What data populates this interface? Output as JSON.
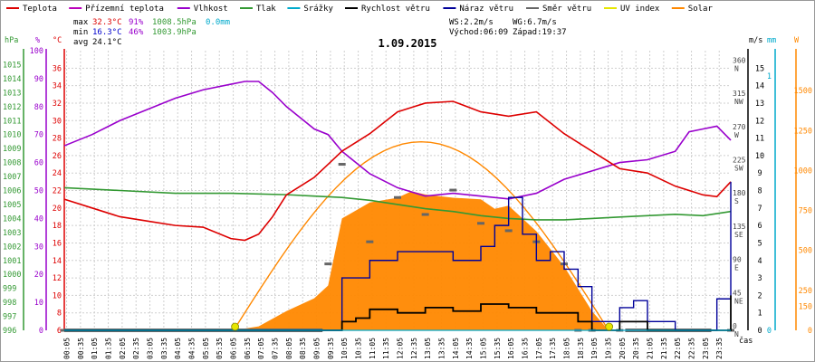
{
  "legend": [
    {
      "label": "Teplota",
      "color": "#dd0000"
    },
    {
      "label": "Přízemní teplota",
      "color": "#bb00bb"
    },
    {
      "label": "Vlhkost",
      "color": "#9900cc"
    },
    {
      "label": "Tlak",
      "color": "#339933"
    },
    {
      "label": "Srážky",
      "color": "#00aacc"
    },
    {
      "label": "Rychlost větru",
      "color": "#000000"
    },
    {
      "label": "Náraz větru",
      "color": "#000099"
    },
    {
      "label": "Směr větru",
      "color": "#666666"
    },
    {
      "label": "UV index",
      "color": "#e6e600"
    },
    {
      "label": "Solar",
      "color": "#ff8800"
    }
  ],
  "stats": {
    "max_label": "max",
    "max_temp": "32.3°C",
    "max_hum": "91%",
    "max_press": "1008.5hPa",
    "max_rain": "0.0mm",
    "min_label": "min",
    "min_temp": "16.3°C",
    "min_hum": "46%",
    "min_press": "1003.9hPa",
    "avg_label": "avg",
    "avg_temp": "24.1°C",
    "ws": "WS:2.2m/s",
    "wg": "WG:6.7m/s",
    "sunrise": "Východ:06:09",
    "sunset": "Západ:19:37"
  },
  "date": "1.09.2015",
  "units": {
    "hpa": "hPa",
    "pct": "%",
    "degc": "°C",
    "ms": "m/s",
    "mm": "mm",
    "w": "W",
    "cas": "čas"
  },
  "colors": {
    "temp": "#dd0000",
    "hum": "#9900cc",
    "press": "#339933",
    "rain": "#00aacc",
    "wind": "#000000",
    "gust": "#000099",
    "dir": "#666666",
    "uv": "#e6e600",
    "solar": "#ff8800"
  },
  "chart_data": {
    "type": "line",
    "title": "1.09.2015",
    "x_unit": "hours",
    "x_tick_labels": [
      "00:05",
      "00:35",
      "01:05",
      "01:35",
      "02:05",
      "02:35",
      "03:05",
      "03:35",
      "04:05",
      "04:35",
      "05:05",
      "05:35",
      "06:05",
      "06:35",
      "07:05",
      "07:35",
      "08:05",
      "08:35",
      "09:05",
      "09:35",
      "10:05",
      "10:35",
      "11:05",
      "11:35",
      "12:05",
      "12:35",
      "13:05",
      "13:35",
      "14:05",
      "14:35",
      "15:05",
      "15:35",
      "16:05",
      "16:35",
      "17:05",
      "17:35",
      "18:05",
      "18:35",
      "19:05",
      "19:35",
      "20:05",
      "20:35",
      "21:05",
      "21:35",
      "22:05",
      "22:35",
      "23:05",
      "23:35"
    ],
    "axes": {
      "pressure_hpa": {
        "range": [
          996,
          1016
        ],
        "ticks": [
          996,
          997,
          998,
          999,
          1000,
          1001,
          1002,
          1003,
          1004,
          1005,
          1006,
          1007,
          1008,
          1009,
          1010,
          1011,
          1012,
          1013,
          1014,
          1015
        ]
      },
      "humidity_pct": {
        "range": [
          0,
          100
        ],
        "ticks": [
          0,
          10,
          20,
          30,
          40,
          50,
          60,
          70,
          80,
          90,
          100
        ]
      },
      "temperature_c": {
        "range": [
          6,
          38
        ],
        "ticks": [
          6,
          8,
          10,
          12,
          14,
          16,
          18,
          20,
          22,
          24,
          26,
          28,
          30,
          32,
          34,
          36
        ]
      },
      "wind_ms": {
        "range": [
          0,
          16
        ],
        "ticks": [
          0,
          1,
          2,
          3,
          4,
          5,
          6,
          7,
          8,
          9,
          10,
          11,
          12,
          13,
          14,
          15
        ]
      },
      "rain_mm": {
        "range": [
          0,
          1.1
        ],
        "ticks": [
          0,
          1
        ]
      },
      "solar_w": {
        "range": [
          0,
          1750
        ],
        "ticks": [
          0,
          150,
          250,
          500,
          750,
          1000,
          1250,
          1500
        ]
      },
      "direction_deg": {
        "ticks": [
          0,
          45,
          90,
          135,
          180,
          225,
          270,
          315,
          360
        ],
        "labels": [
          "N",
          "NE",
          "E",
          "SE",
          "S",
          "SW",
          "W",
          "NW",
          "N"
        ]
      }
    },
    "series": [
      {
        "name": "Teplota",
        "unit": "°C",
        "x": [
          0,
          1,
          2,
          3,
          4,
          5,
          6,
          6.5,
          7,
          7.5,
          8,
          8.5,
          9,
          9.5,
          10,
          11,
          12,
          12.5,
          13,
          14,
          15,
          16,
          17,
          18,
          19,
          20,
          21,
          22,
          23,
          23.5,
          24
        ],
        "values": [
          21,
          20,
          19,
          18.5,
          18,
          17.8,
          16.5,
          16.3,
          17,
          19,
          21.5,
          22.5,
          23.5,
          25,
          26.5,
          28.5,
          31,
          31.5,
          32,
          32.2,
          31,
          30.5,
          31,
          28.5,
          26.5,
          24.5,
          24,
          22.5,
          21.5,
          21.3,
          23
        ]
      },
      {
        "name": "Vlhkost",
        "unit": "%",
        "x": [
          0,
          1,
          2,
          3,
          4,
          5,
          6,
          6.5,
          7,
          7.5,
          8,
          8.5,
          9,
          9.5,
          10,
          11,
          12,
          13,
          14,
          15,
          16,
          17,
          18,
          19,
          20,
          21,
          22,
          22.5,
          23,
          23.5,
          24
        ],
        "values": [
          66,
          70,
          75,
          79,
          83,
          86,
          88,
          89,
          89,
          85,
          80,
          76,
          72,
          70,
          64,
          56,
          51,
          48,
          49,
          48,
          47,
          49,
          54,
          57,
          60,
          61,
          64,
          71,
          72,
          73,
          68
        ]
      },
      {
        "name": "Tlak",
        "unit": "hPa",
        "x": [
          0,
          2,
          4,
          6,
          8,
          9,
          10,
          11,
          12,
          13,
          14,
          15,
          16,
          17,
          18,
          19,
          20,
          21,
          22,
          23,
          24
        ],
        "values": [
          1006.2,
          1006,
          1005.8,
          1005.8,
          1005.7,
          1005.6,
          1005.5,
          1005.3,
          1005,
          1004.7,
          1004.5,
          1004.2,
          1004,
          1003.9,
          1003.9,
          1004,
          1004.1,
          1004.2,
          1004.3,
          1004.2,
          1004.5
        ]
      },
      {
        "name": "Rychlost větru",
        "unit": "m/s",
        "x": [
          0,
          9.5,
          10,
          10.5,
          11,
          12,
          13,
          14,
          15,
          16,
          17,
          18,
          18.5,
          19,
          20,
          21,
          23,
          23.5,
          24
        ],
        "values": [
          0,
          0,
          0.5,
          0.7,
          1.2,
          1.0,
          1.3,
          1.1,
          1.5,
          1.3,
          1.0,
          1.0,
          0.5,
          0,
          0.5,
          0,
          0,
          0,
          2
        ]
      },
      {
        "name": "Náraz větru",
        "unit": "m/s",
        "x": [
          0,
          9.5,
          10,
          11,
          12,
          13,
          14,
          15,
          15.5,
          16,
          16.5,
          17,
          17.5,
          18,
          18.5,
          19,
          20,
          20.5,
          21,
          22,
          23,
          23.5,
          24
        ],
        "values": [
          0,
          0,
          3,
          4,
          4.5,
          4.5,
          4,
          4.8,
          6,
          7.6,
          5.5,
          4,
          4.5,
          3.5,
          2.5,
          0.5,
          1.3,
          1.7,
          0.5,
          0,
          0,
          1.8,
          8.5
        ]
      },
      {
        "name": "Srážky",
        "unit": "mm",
        "x": [
          0,
          24
        ],
        "values": [
          0,
          0
        ]
      },
      {
        "name": "UV index",
        "unit": "",
        "x": [
          0,
          24
        ],
        "values": [
          0,
          0
        ]
      },
      {
        "name": "Solar",
        "unit": "W",
        "x": [
          6.1,
          7,
          8,
          9,
          9.5,
          10,
          11,
          12,
          12.5,
          13,
          14,
          15,
          15.5,
          16,
          17,
          18,
          19,
          19.6
        ],
        "values": [
          0,
          25,
          120,
          200,
          280,
          700,
          800,
          830,
          870,
          850,
          830,
          820,
          760,
          780,
          620,
          400,
          120,
          0
        ]
      },
      {
        "name": "Směr větru",
        "unit": "°",
        "x": [
          0,
          9,
          9.5,
          10,
          11,
          12,
          13,
          14,
          15,
          16,
          17,
          18,
          18.5,
          19,
          20,
          21,
          22,
          23,
          24
        ],
        "values": [
          0,
          0,
          90,
          225,
          120,
          180,
          157,
          190,
          145,
          135,
          120,
          90,
          0,
          0,
          0,
          0,
          0,
          0,
          0
        ]
      }
    ]
  }
}
